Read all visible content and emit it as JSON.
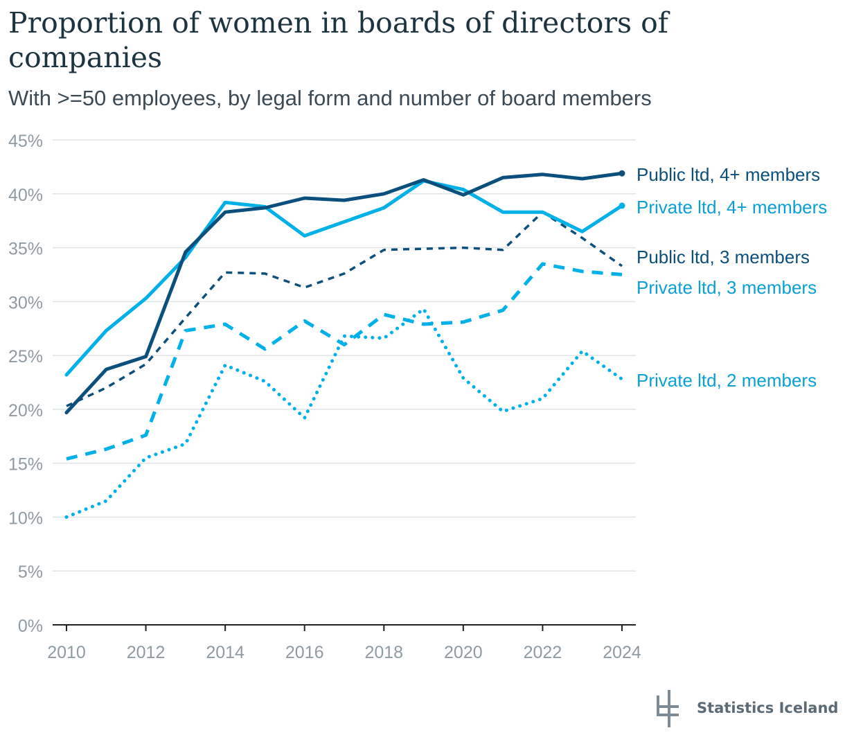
{
  "chart_data": {
    "type": "line",
    "title": "Proportion of women in boards of directors of companies",
    "subtitle": "With >=50 employees, by legal form and number of board members",
    "xlabel": "",
    "ylabel": "",
    "x": [
      2010,
      2011,
      2012,
      2013,
      2014,
      2015,
      2016,
      2017,
      2018,
      2019,
      2020,
      2021,
      2022,
      2023,
      2024
    ],
    "x_ticks": [
      "2010",
      "2012",
      "2014",
      "2016",
      "2018",
      "2020",
      "2022",
      "2024"
    ],
    "y_ticks": [
      "0%",
      "5%",
      "10%",
      "15%",
      "20%",
      "25%",
      "30%",
      "35%",
      "40%",
      "45%"
    ],
    "ylim": [
      0,
      45
    ],
    "grid": "horizontal",
    "legend": "direct labels at right end of lines",
    "series": [
      {
        "name": "Public ltd, 4+ members",
        "color": "#0b4f7c",
        "style": "solid",
        "values": [
          19.7,
          23.7,
          24.9,
          34.6,
          38.3,
          38.7,
          39.6,
          39.4,
          40.0,
          41.3,
          39.9,
          41.5,
          41.8,
          41.4,
          41.9
        ]
      },
      {
        "name": "Private ltd, 4+ members",
        "color": "#00b0e8",
        "style": "solid",
        "values": [
          23.2,
          27.3,
          30.3,
          34.1,
          39.2,
          38.8,
          36.1,
          37.4,
          38.7,
          41.2,
          40.4,
          38.3,
          38.3,
          36.5,
          38.9
        ]
      },
      {
        "name": "Public ltd, 3 members",
        "color": "#0b4f7c",
        "style": "dashed-thin",
        "values": [
          20.3,
          22.0,
          24.2,
          28.5,
          32.7,
          32.6,
          31.3,
          32.6,
          34.8,
          34.9,
          35.0,
          34.8,
          38.3,
          35.9,
          33.3
        ]
      },
      {
        "name": "Private ltd, 3 members",
        "color": "#00b0e8",
        "style": "dashed",
        "values": [
          15.4,
          16.3,
          17.6,
          27.3,
          27.9,
          25.6,
          28.2,
          26.0,
          28.8,
          27.9,
          28.1,
          29.2,
          33.5,
          32.8,
          32.5
        ]
      },
      {
        "name": "Private ltd, 2 members",
        "color": "#00b0e8",
        "style": "dotted",
        "values": [
          10.0,
          11.5,
          15.5,
          16.8,
          24.1,
          22.6,
          19.2,
          26.8,
          26.6,
          29.3,
          22.9,
          19.8,
          21.0,
          25.4,
          22.8
        ]
      }
    ]
  },
  "logo": {
    "text": "Statistics Iceland"
  },
  "colors": {
    "grid": "#dde3e6",
    "axis": "#222222",
    "tick_label": "#8e9ba3"
  }
}
